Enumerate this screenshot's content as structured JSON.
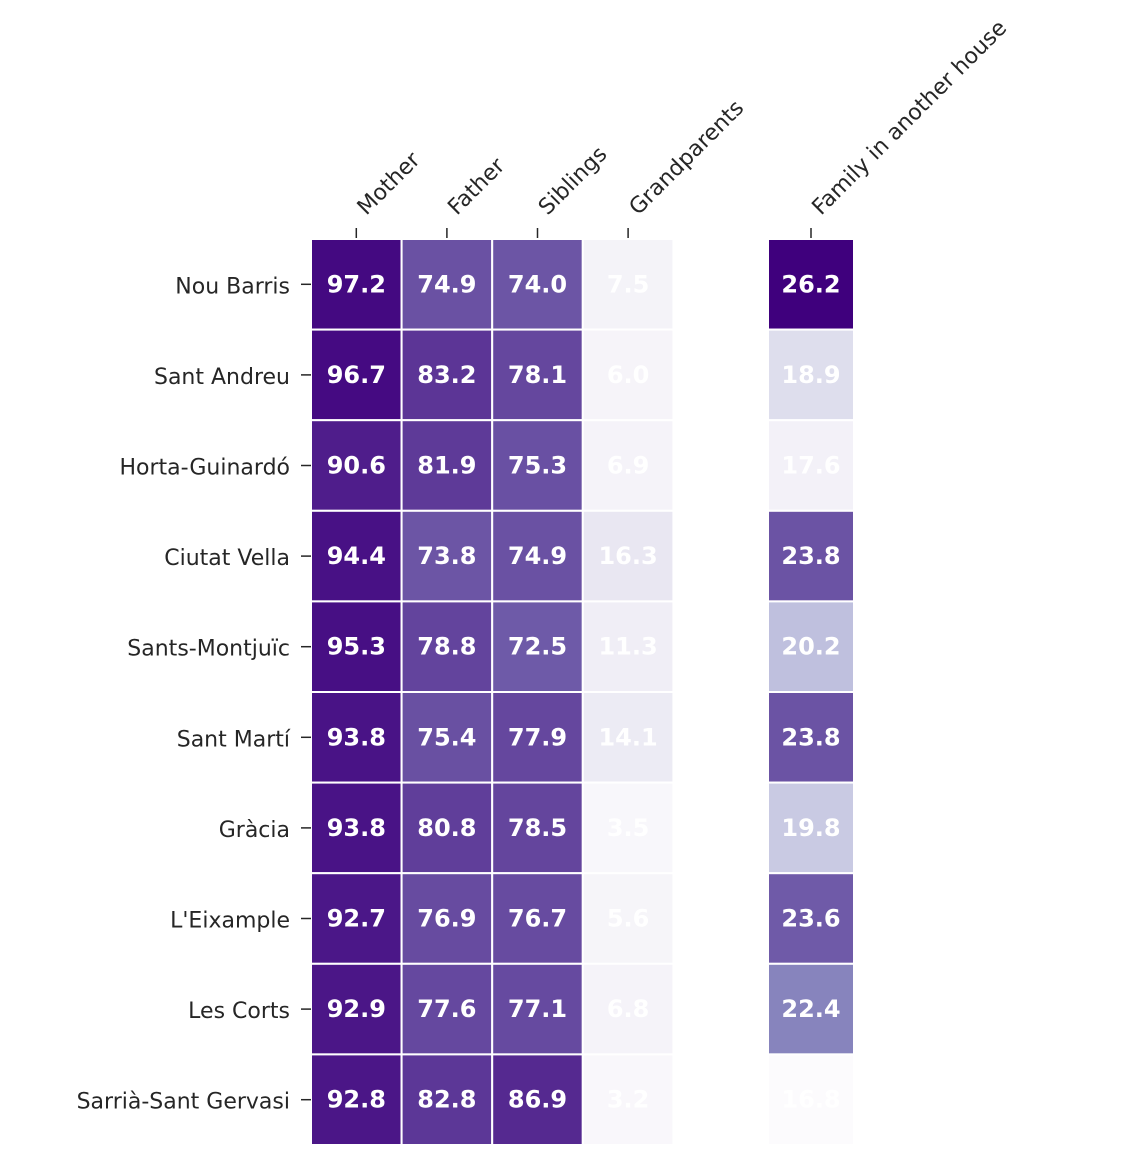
{
  "chart_data": [
    {
      "type": "heatmap",
      "columns": [
        "Mother",
        "Father",
        "Siblings",
        "Grandparents"
      ],
      "rows": [
        "Nou Barris",
        "Sant Andreu",
        "Horta-Guinardó",
        "Ciutat Vella",
        "Sants-Montjuïc",
        "Sant Martí",
        "Gràcia",
        "L'Eixample",
        "Les Corts",
        "Sarrià-Sant Gervasi"
      ],
      "values": [
        [
          97.2,
          74.9,
          74.0,
          7.5
        ],
        [
          96.7,
          83.2,
          78.1,
          6.0
        ],
        [
          90.6,
          81.9,
          75.3,
          6.9
        ],
        [
          94.4,
          73.8,
          74.9,
          16.3
        ],
        [
          95.3,
          78.8,
          72.5,
          11.3
        ],
        [
          93.8,
          75.4,
          77.9,
          14.1
        ],
        [
          93.8,
          80.8,
          78.5,
          3.5
        ],
        [
          92.7,
          76.9,
          76.7,
          5.6
        ],
        [
          92.9,
          77.6,
          77.1,
          6.8
        ],
        [
          92.8,
          82.8,
          86.9,
          3.2
        ]
      ],
      "vmin": 0,
      "vmax": 100,
      "colormap": "Purples"
    },
    {
      "type": "heatmap",
      "columns": [
        "Family in another house"
      ],
      "values": [
        [
          26.2
        ],
        [
          18.9
        ],
        [
          17.6
        ],
        [
          23.8
        ],
        [
          20.2
        ],
        [
          23.8
        ],
        [
          19.8
        ],
        [
          23.6
        ],
        [
          22.4
        ],
        [
          16.8
        ]
      ],
      "vmin": 16.8,
      "vmax": 26.2,
      "colormap": "Purples"
    }
  ],
  "colors": {
    "dark": "#3f007d",
    "light": "#fcfbfd",
    "value_text": "#ffffff",
    "label_text": "#262626"
  }
}
